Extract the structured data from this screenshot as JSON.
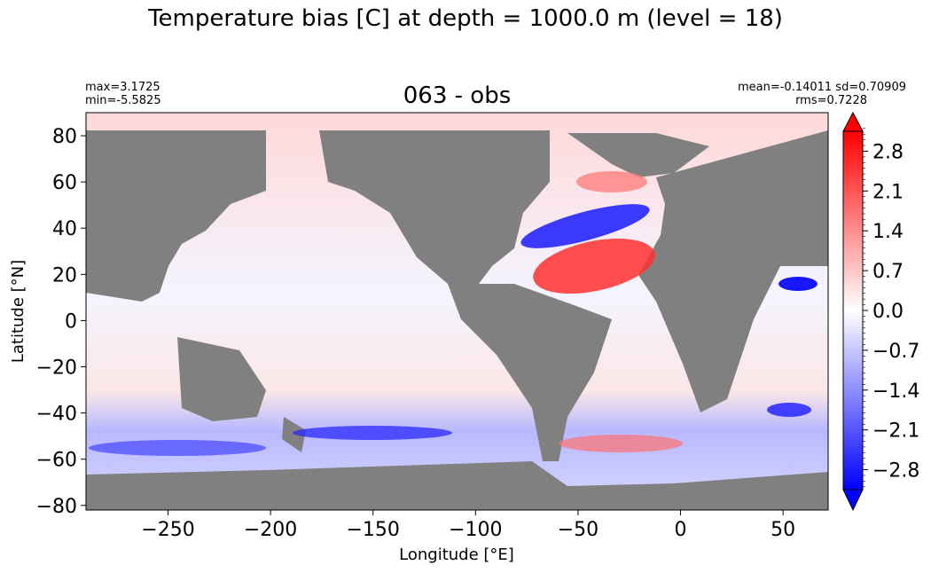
{
  "chart_data": {
    "type": "heatmap",
    "suptitle": "Temperature bias [C] at depth = 1000.0 m (level = 18)",
    "title": "063 - obs",
    "stats": {
      "max": "max=3.1725",
      "min": "min=-5.5825",
      "mean_sd": "mean=-0.14011 sd=0.70909",
      "rms": "rms=0.7228"
    },
    "xlabel": "Longitude [°E]",
    "ylabel": "Latitude [°N]",
    "xlim": [
      -290,
      72
    ],
    "ylim": [
      -82,
      90
    ],
    "x_ticks": [
      -250,
      -200,
      -150,
      -100,
      -50,
      0,
      50
    ],
    "x_tick_labels": [
      "−250",
      "−200",
      "−150",
      "−100",
      "−50",
      "0",
      "50"
    ],
    "y_ticks": [
      80,
      60,
      40,
      20,
      0,
      -20,
      -40,
      -60,
      -80
    ],
    "y_tick_labels": [
      "80",
      "60",
      "40",
      "20",
      "0",
      "−20",
      "−40",
      "−60",
      "−80"
    ],
    "colorbar": {
      "range": [
        -3.15,
        3.15
      ],
      "ticks": [
        2.8,
        2.1,
        1.4,
        0.7,
        0.0,
        -0.7,
        -1.4,
        -2.1,
        -2.8
      ],
      "tick_labels": [
        "2.8",
        "2.1",
        "1.4",
        "0.7",
        "0.0",
        "−0.7",
        "−1.4",
        "−2.1",
        "−2.8"
      ],
      "colormap": "bwr",
      "extend": "both"
    },
    "land_color": "#808080",
    "grid": false
  }
}
